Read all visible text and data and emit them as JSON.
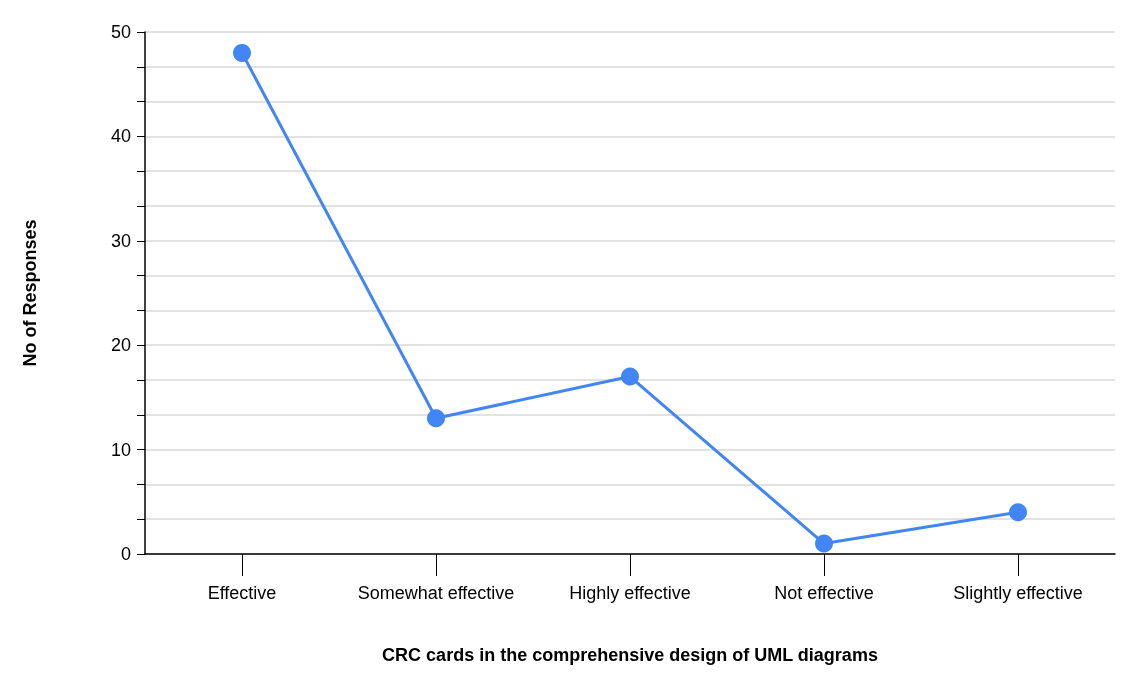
{
  "chart_data": {
    "type": "line",
    "xlabel": "CRC cards in the comprehensive design of UML diagrams",
    "ylabel": "No of Responses",
    "categories": [
      "Effective",
      "Somewhat effective",
      "Highly effective",
      "Not effective",
      "Slightly effective"
    ],
    "series": [
      {
        "color": "#4285f4",
        "values": [
          48,
          13,
          17,
          1,
          4
        ]
      }
    ],
    "ylim": [
      0,
      50
    ],
    "yticks": [
      0,
      {
        "value": 3.33,
        "label": null
      },
      {
        "value": 6.67,
        "label": null
      },
      10,
      {
        "value": 13.33,
        "label": null
      },
      {
        "value": 16.67,
        "label": null
      },
      20,
      {
        "value": 23.33,
        "label": null
      },
      {
        "value": 26.67,
        "label": null
      },
      30,
      {
        "value": 33.33,
        "label": null
      },
      {
        "value": 36.67,
        "label": null
      },
      40,
      {
        "value": 43.33,
        "label": null
      },
      {
        "value": 46.67,
        "label": null
      },
      50
    ],
    "grid": "y",
    "marker": "circle",
    "line_style": "solid"
  }
}
